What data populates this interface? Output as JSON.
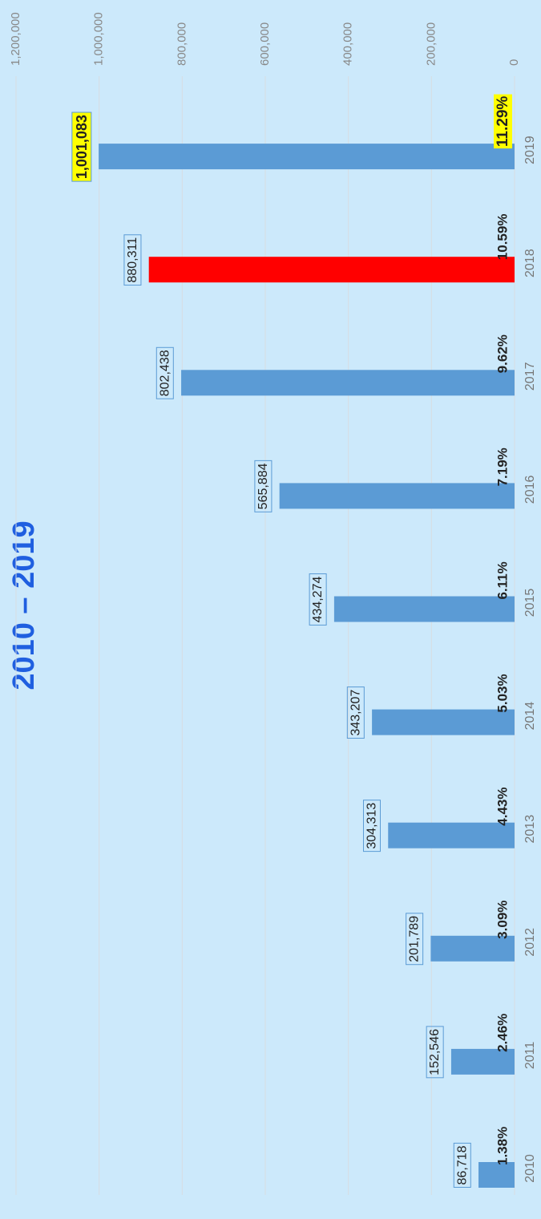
{
  "chart_data": {
    "type": "bar",
    "title": "2010 – 2019",
    "categories": [
      "2010",
      "2011",
      "2012",
      "2013",
      "2014",
      "2015",
      "2016",
      "2017",
      "2018",
      "2019"
    ],
    "values": [
      86718,
      152546,
      201789,
      304313,
      343207,
      434274,
      565884,
      802438,
      880311,
      1001083
    ],
    "value_labels": [
      "86,718",
      "152,546",
      "201,789",
      "304,313",
      "343,207",
      "434,274",
      "565,884",
      "802,438",
      "880,311",
      "1,001,083"
    ],
    "percent_labels": [
      "1.38%",
      "2.46%",
      "3.09%",
      "4.43%",
      "5.03%",
      "6.11%",
      "7.19%",
      "9.62%",
      "10.59%",
      "11.29%"
    ],
    "colors": [
      "#5b9bd5",
      "#5b9bd5",
      "#5b9bd5",
      "#5b9bd5",
      "#5b9bd5",
      "#5b9bd5",
      "#5b9bd5",
      "#5b9bd5",
      "#ff0000",
      "#5b9bd5"
    ],
    "highlighted": [
      false,
      false,
      false,
      false,
      false,
      false,
      false,
      false,
      false,
      true
    ],
    "ylim": [
      0,
      1200000
    ],
    "yticks": [
      0,
      {
        "value": 200000,
        "label": "200,000"
      },
      {
        "value": 400000,
        "label": "400,000"
      },
      {
        "value": 600000,
        "label": "600,000"
      },
      {
        "value": 800000,
        "label": "800,000"
      },
      {
        "value": 1000000,
        "label": "1,000,000"
      },
      {
        "value": 1200000,
        "label": "1,200,000"
      }
    ],
    "grid": true
  }
}
